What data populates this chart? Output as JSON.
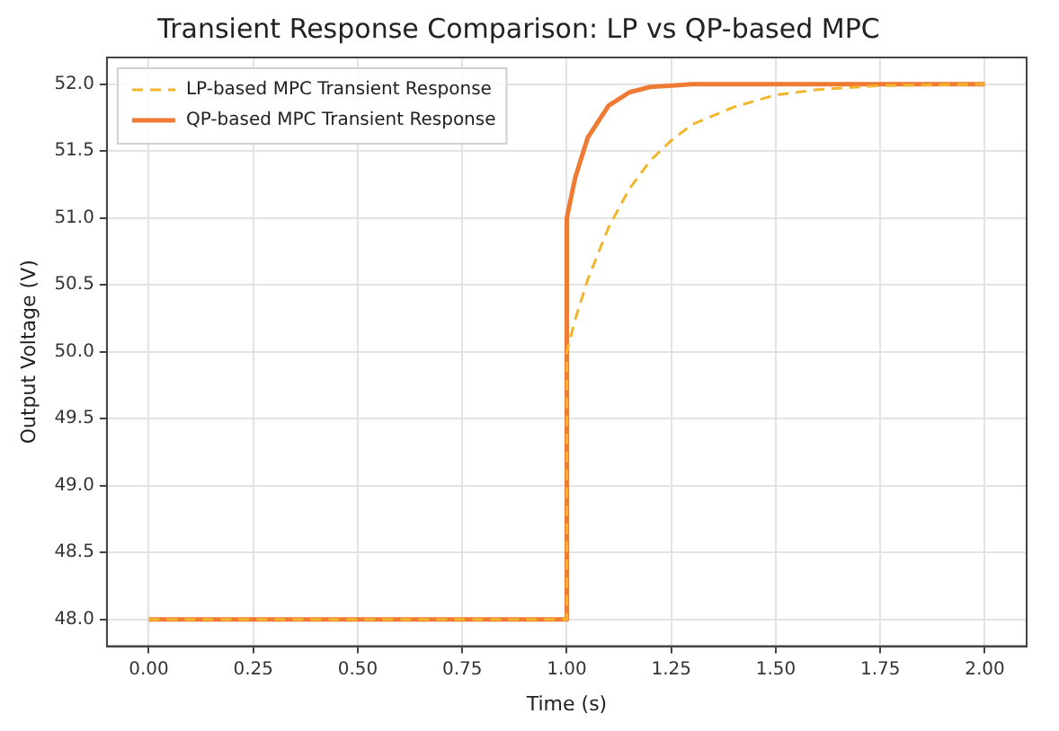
{
  "chart_data": {
    "type": "line",
    "title": "Transient Response Comparison: LP vs QP-based MPC",
    "xlabel": "Time (s)",
    "ylabel": "Output Voltage (V)",
    "xlim": [
      -0.1,
      2.1
    ],
    "xticks": [
      {
        "value": 0,
        "label": "0.00"
      },
      {
        "value": 0.25,
        "label": "0.25"
      },
      {
        "value": 0.5,
        "label": "0.50"
      },
      {
        "value": 0.75,
        "label": "0.75"
      },
      {
        "value": 1,
        "label": "1.00"
      },
      {
        "value": 1.25,
        "label": "1.25"
      },
      {
        "value": 1.5,
        "label": "1.50"
      },
      {
        "value": 1.75,
        "label": "1.75"
      },
      {
        "value": 2,
        "label": "2.00"
      }
    ],
    "ylim": [
      47.8,
      52.2
    ],
    "yticks": [
      {
        "value": 48,
        "label": "48.0"
      },
      {
        "value": 48.5,
        "label": "48.5"
      },
      {
        "value": 49,
        "label": "49.0"
      },
      {
        "value": 49.5,
        "label": "49.5"
      },
      {
        "value": 50,
        "label": "50.0"
      },
      {
        "value": 50.5,
        "label": "50.5"
      },
      {
        "value": 51,
        "label": "51.0"
      },
      {
        "value": 51.5,
        "label": "51.5"
      },
      {
        "value": 52,
        "label": "52.0"
      }
    ],
    "grid": true,
    "legend": "top left",
    "marker": "none",
    "series": [
      {
        "name": "LP-based MPC Transient Response",
        "color": "#f2b52c",
        "line_style": "dashed",
        "x": [
          0,
          1,
          1,
          1.02,
          1.05,
          1.1,
          1.15,
          1.2,
          1.25,
          1.3,
          1.4,
          1.5,
          1.6,
          1.75,
          2
        ],
        "values": [
          48,
          48,
          50.0,
          50.24,
          50.54,
          50.93,
          51.22,
          51.43,
          51.58,
          51.7,
          51.83,
          51.92,
          51.96,
          51.99,
          52
        ]
      },
      {
        "name": "QP-based MPC Transient Response",
        "color": "#ee7a33",
        "line_style": "solid",
        "x": [
          0,
          1,
          1,
          1.02,
          1.05,
          1.1,
          1.15,
          1.2,
          1.3,
          2
        ],
        "values": [
          48,
          48,
          51.0,
          51.3,
          51.6,
          51.84,
          51.94,
          51.98,
          52,
          52
        ]
      }
    ]
  }
}
